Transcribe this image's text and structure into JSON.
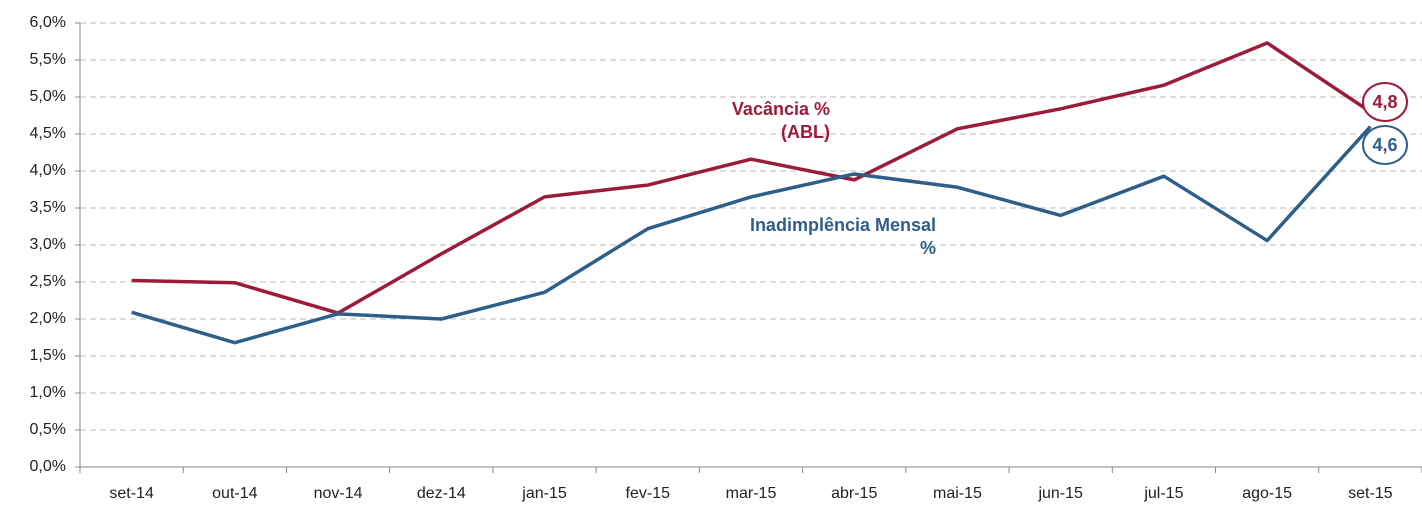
{
  "chart_data": {
    "type": "line",
    "categories": [
      "set-14",
      "out-14",
      "nov-14",
      "dez-14",
      "jan-15",
      "fev-15",
      "mar-15",
      "abr-15",
      "mai-15",
      "jun-15",
      "jul-15",
      "ago-15",
      "set-15"
    ],
    "series": [
      {
        "name": "Vacância % (ABL)",
        "color": "#9b1b3a",
        "values": [
          2.52,
          2.49,
          2.08,
          2.88,
          3.65,
          3.81,
          4.16,
          3.88,
          4.57,
          4.84,
          5.16,
          5.73,
          4.8
        ],
        "value_labels": [
          null,
          null,
          null,
          null,
          null,
          null,
          null,
          null,
          null,
          null,
          null,
          null,
          "4,8"
        ]
      },
      {
        "name": "Inadimplência Mensal %",
        "color": "#2e5f8a",
        "values": [
          2.09,
          1.68,
          2.07,
          2.0,
          2.36,
          3.22,
          3.65,
          3.96,
          3.78,
          3.4,
          3.93,
          3.06,
          4.6
        ],
        "value_labels": [
          null,
          null,
          null,
          null,
          null,
          null,
          null,
          null,
          null,
          null,
          null,
          null,
          "4,6"
        ]
      }
    ],
    "ylim": [
      0,
      6
    ],
    "yticks": [
      {
        "value": 0,
        "label": "0,0%"
      },
      {
        "value": 0.5,
        "label": "0,5%"
      },
      {
        "value": 1,
        "label": "1,0%"
      },
      {
        "value": 1.5,
        "label": "1,5%"
      },
      {
        "value": 2,
        "label": "2,0%"
      },
      {
        "value": 2.5,
        "label": "2,5%"
      },
      {
        "value": 3,
        "label": "3,0%"
      },
      {
        "value": 3.5,
        "label": "3,5%"
      },
      {
        "value": 4,
        "label": "4,0%"
      },
      {
        "value": 4.5,
        "label": "4,5%"
      },
      {
        "value": 5,
        "label": "5,0%"
      },
      {
        "value": 5.5,
        "label": "5,5%"
      },
      {
        "value": 6,
        "label": "6,0%"
      }
    ],
    "grid": true
  }
}
